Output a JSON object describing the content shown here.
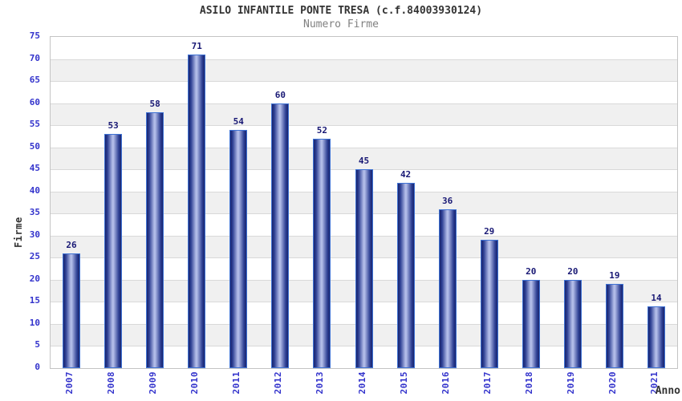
{
  "header": {
    "title": "ASILO INFANTILE PONTE TRESA (c.f.84003930124)",
    "subtitle": "Numero Firme"
  },
  "chart_data": {
    "type": "bar",
    "title": "ASILO INFANTILE PONTE TRESA (c.f.84003930124)",
    "subtitle": "Numero Firme",
    "categories": [
      "2007",
      "2008",
      "2009",
      "2010",
      "2011",
      "2012",
      "2013",
      "2014",
      "2015",
      "2016",
      "2017",
      "2018",
      "2019",
      "2020",
      "2021"
    ],
    "values": [
      26,
      53,
      58,
      71,
      54,
      60,
      52,
      45,
      42,
      36,
      29,
      20,
      20,
      19,
      14
    ],
    "xlabel": "Anno",
    "ylabel": "Firme",
    "ylim": [
      0,
      75
    ],
    "ytick_step": 5,
    "grid": true,
    "legend": false,
    "alternating_bands": true,
    "colors": {
      "bar_dark": "#18246e",
      "bar_mid": "#2e4094",
      "bar_light": "#b2bce8",
      "bar_border": "#3e72d4",
      "tick_label": "#3333cc",
      "value_label": "#191975",
      "band": "#f0f0f0",
      "gridline": "#d9d9d9",
      "title": "#333333",
      "subtitle": "#808080"
    }
  }
}
